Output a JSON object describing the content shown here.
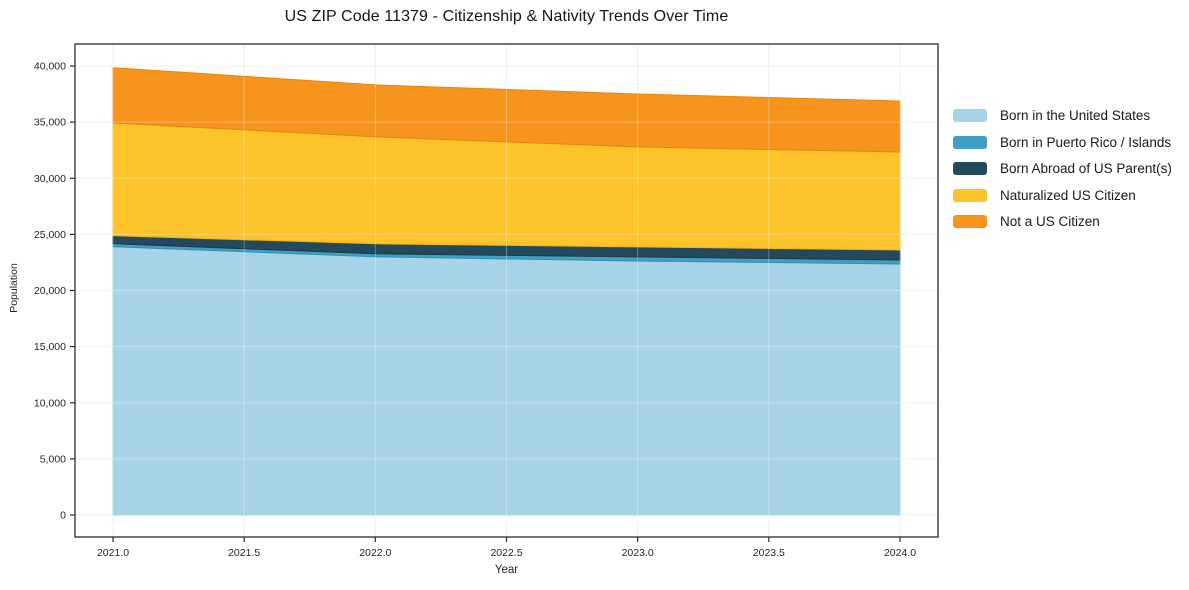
{
  "page": {
    "background": "#ffffff"
  },
  "chart_data": {
    "type": "area",
    "stacked": true,
    "title": "US ZIP Code 11379 - Citizenship & Nativity Trends Over Time",
    "xlabel": "Year",
    "ylabel": "Population",
    "x": [
      2021,
      2022,
      2023,
      2024
    ],
    "series": [
      {
        "name": "Born in the United States",
        "color": "#a6d3e8",
        "edge": "#8cc2dc",
        "values": [
          23900,
          23000,
          22630,
          22360
        ]
      },
      {
        "name": "Born in Puerto Rico / Islands",
        "color": "#3fa0c1",
        "edge": "#3390b0",
        "values": [
          270,
          270,
          360,
          360
        ]
      },
      {
        "name": "Born Abroad of US Parent(s)",
        "color": "#24485c",
        "edge": "#1c3a4b",
        "values": [
          710,
          890,
          890,
          890
        ]
      },
      {
        "name": "Naturalized US Citizen",
        "color": "#fdc32a",
        "edge": "#f2b216",
        "values": [
          10050,
          9530,
          8910,
          8730
        ]
      },
      {
        "name": "Not a US Citizen",
        "color": "#f6941e",
        "edge": "#e98410",
        "values": [
          4920,
          4630,
          4720,
          4540
        ]
      }
    ],
    "x_ticks": [
      {
        "value": 2021.0,
        "label": "2021.0"
      },
      {
        "value": 2021.5,
        "label": "2021.5"
      },
      {
        "value": 2022.0,
        "label": "2022.0"
      },
      {
        "value": 2022.5,
        "label": "2022.5"
      },
      {
        "value": 2023.0,
        "label": "2023.0"
      },
      {
        "value": 2023.5,
        "label": "2023.5"
      },
      {
        "value": 2024.0,
        "label": "2024.0"
      }
    ],
    "y_ticks": [
      {
        "value": 0,
        "label": "0"
      },
      {
        "value": 5000,
        "label": "5,000"
      },
      {
        "value": 10000,
        "label": "10,000"
      },
      {
        "value": 15000,
        "label": "15,000"
      },
      {
        "value": 20000,
        "label": "20,000"
      },
      {
        "value": 25000,
        "label": "25,000"
      },
      {
        "value": 30000,
        "label": "30,000"
      },
      {
        "value": 35000,
        "label": "35,000"
      },
      {
        "value": 40000,
        "label": "40,000"
      }
    ],
    "ylim": [
      0,
      40000
    ],
    "grid": true,
    "legend_position": "right"
  }
}
